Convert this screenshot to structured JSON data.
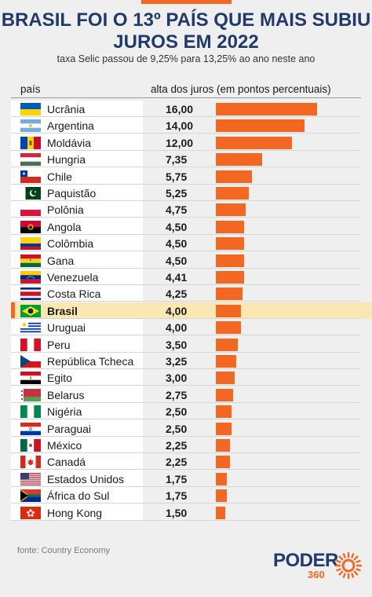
{
  "header": {
    "title_line1": "BRASIL FOI O 13º PAÍS QUE MAIS SUBIU",
    "title_line2": "JUROS EM 2022",
    "subtitle": "taxa Selic passou de 9,25% para 13,25% ao ano neste ano"
  },
  "columns": {
    "country": "país",
    "rise": "alta dos juros (em pontos percentuais)"
  },
  "chart_data": {
    "type": "bar",
    "orientation": "horizontal",
    "title": "BRASIL FOI O 13º PAÍS QUE MAIS SUBIU JUROS EM 2022",
    "subtitle": "taxa Selic passou de 9,25% para 13,25% ao ano neste ano",
    "ylabel": "país",
    "xlabel": "alta dos juros (em pontos percentuais)",
    "xlim": [
      0,
      16
    ],
    "highlight": "Brasil",
    "highlight_color": "#fbe7b2",
    "bar_color": "#f26722",
    "categories": [
      "Ucrânia",
      "Argentina",
      "Moldávia",
      "Hungria",
      "Chile",
      "Paquistão",
      "Polônia",
      "Angola",
      "Colômbia",
      "Gana",
      "Venezuela",
      "Costa Rica",
      "Brasil",
      "Uruguai",
      "Peru",
      "República Tcheca",
      "Egito",
      "Belarus",
      "Nigéria",
      "Paraguai",
      "México",
      "Canadá",
      "Estados Unidos",
      "África do Sul",
      "Hong Kong"
    ],
    "values": [
      16.0,
      14.0,
      12.0,
      7.35,
      5.75,
      5.25,
      4.75,
      4.5,
      4.5,
      4.5,
      4.41,
      4.25,
      4.0,
      4.0,
      3.5,
      3.25,
      3.0,
      2.75,
      2.5,
      2.5,
      2.25,
      2.25,
      1.75,
      1.75,
      1.5
    ],
    "value_labels": [
      "16,00",
      "14,00",
      "12,00",
      "7,35",
      "5,75",
      "5,25",
      "4,75",
      "4,50",
      "4,50",
      "4,50",
      "4,41",
      "4,25",
      "4,00",
      "4,00",
      "3,50",
      "3,25",
      "3,00",
      "2,75",
      "2,50",
      "2,50",
      "2,25",
      "2,25",
      "1,75",
      "1,75",
      "1,50"
    ],
    "flag_icons": [
      "flag-ukraine-icon",
      "flag-argentina-icon",
      "flag-moldova-icon",
      "flag-hungary-icon",
      "flag-chile-icon",
      "flag-pakistan-icon",
      "flag-poland-icon",
      "flag-angola-icon",
      "flag-colombia-icon",
      "flag-ghana-icon",
      "flag-venezuela-icon",
      "flag-costa-rica-icon",
      "flag-brazil-icon",
      "flag-uruguay-icon",
      "flag-peru-icon",
      "flag-czech-icon",
      "flag-egypt-icon",
      "flag-belarus-icon",
      "flag-nigeria-icon",
      "flag-paraguay-icon",
      "flag-mexico-icon",
      "flag-canada-icon",
      "flag-usa-icon",
      "flag-south-africa-icon",
      "flag-hong-kong-icon"
    ]
  },
  "footer": {
    "source": "fonte: Country Economy",
    "logo_word": "PODER",
    "logo_number": "360"
  }
}
